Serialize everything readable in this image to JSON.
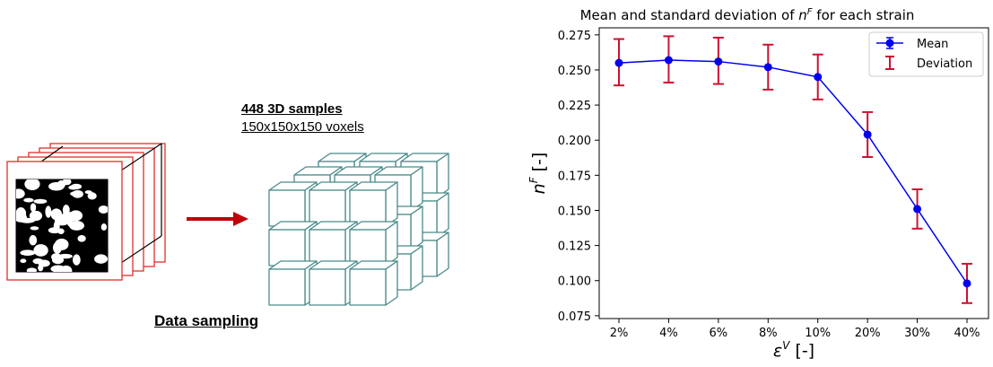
{
  "left_panel": {
    "samples_title": "448 3D samples",
    "samples_size": "150x150x150 voxels",
    "caption": "Data sampling"
  },
  "colors": {
    "slice_border": "#e0302a",
    "arrow": "#c0000a",
    "cube_stroke": "#4a8a8a",
    "mean_line": "#0000ee",
    "deviation": "#cc1133"
  },
  "chart_data": {
    "type": "line",
    "title": "Mean and standard deviation of n^F for each strain",
    "title_parts": [
      "Mean and standard deviation of ",
      "n",
      "F",
      " for each strain"
    ],
    "xlabel_parts": [
      "ε",
      "V",
      " [-]"
    ],
    "ylabel_parts": [
      "n",
      "F",
      " [-]"
    ],
    "categories": [
      "2%",
      "4%",
      "6%",
      "8%",
      "10%",
      "20%",
      "30%",
      "40%"
    ],
    "ylim": [
      0.073,
      0.28
    ],
    "yticks": [
      "0.075",
      "0.100",
      "0.125",
      "0.150",
      "0.175",
      "0.200",
      "0.225",
      "0.250",
      "0.275"
    ],
    "ytick_values": [
      0.075,
      0.1,
      0.125,
      0.15,
      0.175,
      0.2,
      0.225,
      0.25,
      0.275
    ],
    "grid": false,
    "legend_position": "top-right",
    "series": [
      {
        "name": "Mean",
        "values": [
          0.255,
          0.257,
          0.256,
          0.252,
          0.245,
          0.204,
          0.151,
          0.098
        ]
      }
    ],
    "errors": {
      "name": "Deviation",
      "lower": [
        0.239,
        0.241,
        0.24,
        0.236,
        0.229,
        0.188,
        0.137,
        0.084
      ],
      "upper": [
        0.272,
        0.274,
        0.273,
        0.268,
        0.261,
        0.22,
        0.165,
        0.112
      ]
    }
  }
}
